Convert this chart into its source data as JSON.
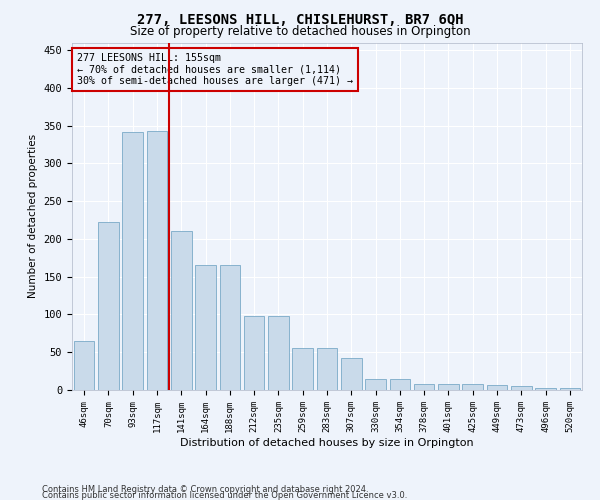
{
  "title": "277, LEESONS HILL, CHISLEHURST, BR7 6QH",
  "subtitle": "Size of property relative to detached houses in Orpington",
  "xlabel": "Distribution of detached houses by size in Orpington",
  "ylabel": "Number of detached properties",
  "bar_color": "#c9daea",
  "bar_edge_color": "#7aaac8",
  "categories": [
    "46sqm",
    "70sqm",
    "93sqm",
    "117sqm",
    "141sqm",
    "164sqm",
    "188sqm",
    "212sqm",
    "235sqm",
    "259sqm",
    "283sqm",
    "307sqm",
    "330sqm",
    "354sqm",
    "378sqm",
    "401sqm",
    "425sqm",
    "449sqm",
    "473sqm",
    "496sqm",
    "520sqm"
  ],
  "values": [
    65,
    222,
    342,
    343,
    210,
    166,
    165,
    98,
    98,
    55,
    55,
    42,
    15,
    15,
    8,
    8,
    8,
    7,
    5,
    2,
    3
  ],
  "vline_color": "#cc0000",
  "annotation_line1": "277 LEESONS HILL: 155sqm",
  "annotation_line2": "← 70% of detached houses are smaller (1,114)",
  "annotation_line3": "30% of semi-detached houses are larger (471) →",
  "annotation_box_color": "#cc0000",
  "ylim": [
    0,
    460
  ],
  "yticks": [
    0,
    50,
    100,
    150,
    200,
    250,
    300,
    350,
    400,
    450
  ],
  "footer_line1": "Contains HM Land Registry data © Crown copyright and database right 2024.",
  "footer_line2": "Contains public sector information licensed under the Open Government Licence v3.0.",
  "bg_color": "#eef3fb",
  "grid_color": "#ffffff",
  "title_fontsize": 10,
  "subtitle_fontsize": 8.5
}
